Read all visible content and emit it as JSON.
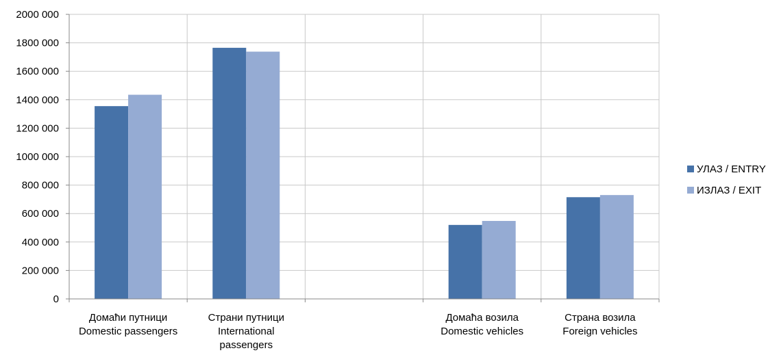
{
  "chart_data": {
    "type": "bar",
    "categories": [
      [
        "Домаћи путници",
        "Domestic passengers"
      ],
      [
        "Страни путници",
        "International",
        "passengers"
      ],
      [
        ""
      ],
      [
        "Домаћа возила",
        "Domestic vehicles"
      ],
      [
        "Страна возила",
        "Foreign vehicles"
      ]
    ],
    "series": [
      {
        "name": "УЛАЗ / ENTRY",
        "color": "#4672a8",
        "values": [
          1355000,
          1765000,
          null,
          520000,
          715000
        ]
      },
      {
        "name": "ИЗЛАЗ / EXIT",
        "color": "#95abd3",
        "values": [
          1435000,
          1738000,
          null,
          548000,
          730000
        ]
      }
    ],
    "yticks": [
      "0",
      "200 000",
      "400 000",
      "600 000",
      "800 000",
      "1000 000",
      "1200 000",
      "1400 000",
      "1600 000",
      "1800 000",
      "2000 000"
    ],
    "ylim": [
      0,
      2000000
    ],
    "grid": true,
    "legend_position": "right",
    "title": "",
    "xlabel": "",
    "ylabel": ""
  }
}
